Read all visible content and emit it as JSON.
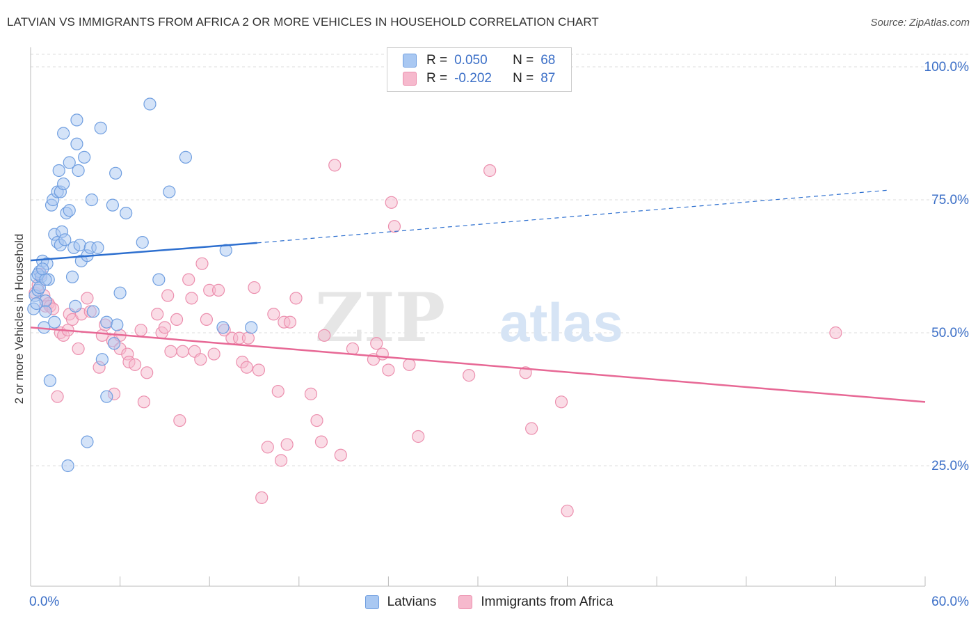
{
  "title": "LATVIAN VS IMMIGRANTS FROM AFRICA 2 OR MORE VEHICLES IN HOUSEHOLD CORRELATION CHART",
  "source": "Source: ZipAtlas.com",
  "watermark": {
    "zip": "ZIP",
    "atlas": "atlas"
  },
  "legend": {
    "rows": [
      {
        "r_label": "R =",
        "r_value": "0.050",
        "n_label": "N =",
        "n_value": "68"
      },
      {
        "r_label": "R =",
        "r_value": "-0.202",
        "n_label": "N =",
        "n_value": "87"
      }
    ]
  },
  "colors": {
    "latvians_fill": "#a9c8f2",
    "latvians_stroke": "#6f9ee0",
    "latvians_line": "#2d6fcf",
    "africa_fill": "#f6b9cd",
    "africa_stroke": "#ec8fae",
    "africa_line": "#e76895",
    "axis_label": "#3a6ec7",
    "grid": "#dddddd"
  },
  "chart_data": {
    "type": "scatter",
    "title": "LATVIAN VS IMMIGRANTS FROM AFRICA 2 OR MORE VEHICLES IN HOUSEHOLD CORRELATION CHART",
    "xlabel": "",
    "ylabel": "2 or more Vehicles in Household",
    "xlim": [
      0,
      60
    ],
    "ylim": [
      0,
      105
    ],
    "x_tick_labels": [
      "0.0%",
      "60.0%"
    ],
    "y_ticks": [
      25,
      50,
      75,
      100
    ],
    "y_tick_labels": [
      "25.0%",
      "50.0%",
      "75.0%",
      "100.0%"
    ],
    "grid": true,
    "legend_position": "top-center",
    "series": [
      {
        "name": "Latvians",
        "r": 0.05,
        "n": 68,
        "trend": {
          "x0": 0,
          "y0": 63.6,
          "x1": 15.2,
          "y1": 66.9,
          "dashed_to_x": 57.5,
          "dashed_to_y": 76.8
        },
        "points": [
          [
            0.2,
            54.5
          ],
          [
            0.3,
            57.0
          ],
          [
            0.4,
            60.5
          ],
          [
            0.5,
            58.0
          ],
          [
            0.6,
            61.5
          ],
          [
            0.7,
            60.5
          ],
          [
            0.8,
            63.5
          ],
          [
            0.9,
            51.0
          ],
          [
            1.0,
            56.0
          ],
          [
            1.0,
            54.0
          ],
          [
            1.1,
            63.0
          ],
          [
            1.2,
            60.0
          ],
          [
            1.3,
            41.0
          ],
          [
            1.4,
            74.0
          ],
          [
            1.5,
            75.0
          ],
          [
            1.6,
            68.5
          ],
          [
            1.6,
            52.0
          ],
          [
            1.8,
            76.5
          ],
          [
            1.8,
            67.0
          ],
          [
            1.9,
            80.5
          ],
          [
            2.0,
            66.5
          ],
          [
            2.0,
            76.5
          ],
          [
            2.1,
            69.0
          ],
          [
            2.2,
            87.5
          ],
          [
            2.2,
            78.0
          ],
          [
            2.3,
            67.5
          ],
          [
            2.4,
            72.5
          ],
          [
            2.5,
            25.0
          ],
          [
            2.6,
            73.0
          ],
          [
            2.6,
            82.0
          ],
          [
            2.8,
            60.5
          ],
          [
            2.9,
            66.0
          ],
          [
            3.0,
            55.0
          ],
          [
            3.1,
            85.5
          ],
          [
            3.1,
            90.0
          ],
          [
            3.2,
            80.5
          ],
          [
            3.3,
            66.5
          ],
          [
            3.4,
            63.5
          ],
          [
            3.6,
            83.0
          ],
          [
            3.8,
            29.5
          ],
          [
            3.8,
            64.5
          ],
          [
            4.0,
            66.0
          ],
          [
            4.1,
            75.0
          ],
          [
            4.2,
            54.0
          ],
          [
            4.5,
            66.0
          ],
          [
            4.8,
            45.0
          ],
          [
            4.7,
            88.5
          ],
          [
            5.1,
            52.0
          ],
          [
            5.1,
            38.0
          ],
          [
            5.5,
            74.0
          ],
          [
            5.6,
            48.0
          ],
          [
            5.7,
            80.0
          ],
          [
            5.8,
            51.5
          ],
          [
            6.0,
            57.5
          ],
          [
            6.4,
            72.5
          ],
          [
            7.5,
            67.0
          ],
          [
            8.0,
            93.0
          ],
          [
            8.6,
            60.0
          ],
          [
            9.3,
            76.5
          ],
          [
            10.4,
            83.0
          ],
          [
            12.9,
            51.0
          ],
          [
            13.1,
            65.5
          ],
          [
            14.8,
            51.0
          ],
          [
            0.5,
            61.0
          ],
          [
            0.6,
            58.5
          ],
          [
            1.0,
            60.0
          ],
          [
            0.8,
            62.0
          ],
          [
            0.4,
            55.5
          ]
        ]
      },
      {
        "name": "Immigrants from Africa",
        "r": -0.202,
        "n": 87,
        "trend": {
          "x0": 0,
          "y0": 51.0,
          "x1": 60,
          "y1": 37.0
        },
        "points": [
          [
            0.3,
            57.5
          ],
          [
            0.5,
            59.0
          ],
          [
            0.7,
            61.0
          ],
          [
            0.9,
            57.0
          ],
          [
            1.0,
            55.0
          ],
          [
            1.2,
            55.5
          ],
          [
            1.3,
            55.0
          ],
          [
            1.5,
            54.5
          ],
          [
            1.8,
            38.0
          ],
          [
            2.0,
            50.0
          ],
          [
            2.2,
            49.5
          ],
          [
            2.5,
            50.5
          ],
          [
            2.6,
            53.5
          ],
          [
            2.8,
            52.5
          ],
          [
            3.2,
            47.0
          ],
          [
            3.4,
            53.5
          ],
          [
            3.8,
            56.5
          ],
          [
            4.0,
            54.0
          ],
          [
            4.6,
            43.5
          ],
          [
            4.8,
            49.5
          ],
          [
            5.0,
            51.5
          ],
          [
            5.5,
            48.5
          ],
          [
            5.6,
            38.5
          ],
          [
            6.0,
            47.0
          ],
          [
            6.0,
            49.5
          ],
          [
            6.5,
            46.0
          ],
          [
            6.6,
            44.5
          ],
          [
            7.0,
            44.0
          ],
          [
            7.4,
            50.5
          ],
          [
            7.6,
            37.0
          ],
          [
            7.8,
            42.5
          ],
          [
            8.5,
            53.5
          ],
          [
            8.8,
            50.0
          ],
          [
            9.0,
            51.0
          ],
          [
            9.2,
            57.0
          ],
          [
            9.4,
            46.5
          ],
          [
            9.8,
            52.5
          ],
          [
            10.0,
            33.5
          ],
          [
            10.2,
            46.5
          ],
          [
            10.6,
            60.0
          ],
          [
            10.8,
            56.5
          ],
          [
            11.0,
            46.5
          ],
          [
            11.4,
            45.0
          ],
          [
            11.5,
            63.0
          ],
          [
            11.8,
            52.5
          ],
          [
            12.0,
            58.0
          ],
          [
            12.3,
            46.0
          ],
          [
            12.6,
            58.0
          ],
          [
            13.0,
            50.5
          ],
          [
            13.5,
            49.0
          ],
          [
            14.0,
            49.0
          ],
          [
            14.2,
            44.5
          ],
          [
            14.5,
            43.5
          ],
          [
            14.6,
            49.0
          ],
          [
            15.0,
            58.5
          ],
          [
            15.3,
            43.0
          ],
          [
            15.5,
            19.0
          ],
          [
            15.9,
            28.5
          ],
          [
            16.3,
            53.5
          ],
          [
            16.6,
            39.0
          ],
          [
            16.8,
            26.0
          ],
          [
            17.0,
            52.0
          ],
          [
            17.2,
            29.0
          ],
          [
            17.4,
            52.0
          ],
          [
            17.8,
            56.5
          ],
          [
            18.8,
            38.5
          ],
          [
            19.2,
            33.5
          ],
          [
            19.5,
            29.5
          ],
          [
            19.7,
            49.5
          ],
          [
            20.4,
            81.5
          ],
          [
            20.8,
            27.0
          ],
          [
            21.6,
            47.0
          ],
          [
            23.0,
            45.0
          ],
          [
            23.2,
            48.0
          ],
          [
            23.6,
            46.0
          ],
          [
            24.0,
            43.0
          ],
          [
            24.2,
            74.5
          ],
          [
            24.4,
            70.0
          ],
          [
            25.4,
            44.0
          ],
          [
            26.0,
            30.5
          ],
          [
            29.4,
            42.0
          ],
          [
            30.8,
            80.5
          ],
          [
            33.2,
            42.5
          ],
          [
            33.6,
            32.0
          ],
          [
            35.6,
            37.0
          ],
          [
            36.0,
            16.5
          ],
          [
            54.0,
            50.0
          ]
        ]
      }
    ]
  }
}
